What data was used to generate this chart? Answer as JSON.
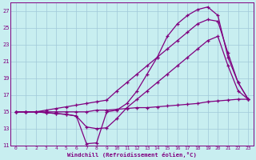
{
  "background_color": "#c8eef0",
  "line_color": "#800080",
  "grid_color": "#a0c8d8",
  "xlabel": "Windchill (Refroidissement éolien,°C)",
  "xlim": [
    -0.5,
    23.5
  ],
  "ylim": [
    11,
    28
  ],
  "yticks": [
    11,
    13,
    15,
    17,
    19,
    21,
    23,
    25,
    27
  ],
  "xticks": [
    0,
    1,
    2,
    3,
    4,
    5,
    6,
    7,
    8,
    9,
    10,
    11,
    12,
    13,
    14,
    15,
    16,
    17,
    18,
    19,
    20,
    21,
    22,
    23
  ],
  "curve1_x": [
    0,
    1,
    2,
    3,
    4,
    5,
    6,
    7,
    8,
    9,
    10,
    11,
    12,
    13,
    14,
    15,
    16,
    17,
    18,
    19,
    20,
    21,
    22,
    23
  ],
  "curve1_y": [
    15.0,
    15.0,
    15.0,
    15.0,
    15.0,
    15.0,
    15.0,
    15.0,
    15.2,
    15.2,
    15.3,
    15.4,
    15.5,
    15.5,
    15.6,
    15.7,
    15.8,
    15.9,
    16.0,
    16.2,
    16.3,
    16.4,
    16.5,
    16.5
  ],
  "curve2_x": [
    0,
    1,
    2,
    3,
    4,
    5,
    6,
    7,
    8,
    9,
    10,
    11,
    12,
    13,
    14,
    15,
    16,
    17,
    18,
    19,
    20,
    21,
    22,
    23
  ],
  "curve2_y": [
    15.0,
    15.0,
    15.0,
    14.9,
    14.8,
    14.7,
    14.5,
    13.2,
    13.0,
    13.1,
    14.2,
    15.5,
    16.5,
    17.5,
    18.5,
    19.5,
    20.5,
    21.5,
    22.5,
    23.5,
    24.0,
    20.5,
    17.5,
    16.5
  ],
  "curve3_x": [
    0,
    1,
    2,
    3,
    4,
    5,
    6,
    7,
    8,
    9,
    10,
    11,
    12,
    13,
    14,
    15,
    16,
    17,
    18,
    19,
    20,
    21,
    22,
    23
  ],
  "curve3_y": [
    15.0,
    15.0,
    15.0,
    15.2,
    15.4,
    15.6,
    15.8,
    16.0,
    16.2,
    16.4,
    17.5,
    18.5,
    19.5,
    20.5,
    21.5,
    22.5,
    23.5,
    24.5,
    25.5,
    26.0,
    25.8,
    22.0,
    18.5,
    16.5
  ],
  "curve4_x": [
    0,
    1,
    2,
    3,
    4,
    5,
    6,
    7,
    8,
    9,
    10,
    11,
    12,
    13,
    14,
    15,
    16,
    17,
    18,
    19,
    20,
    21,
    22,
    23
  ],
  "curve4_y": [
    15.0,
    15.0,
    15.0,
    14.9,
    14.8,
    14.7,
    14.5,
    11.2,
    11.3,
    15.0,
    15.2,
    16.0,
    17.5,
    19.5,
    21.5,
    24.0,
    25.5,
    26.5,
    27.2,
    27.5,
    26.5,
    21.5,
    18.5,
    16.5
  ]
}
